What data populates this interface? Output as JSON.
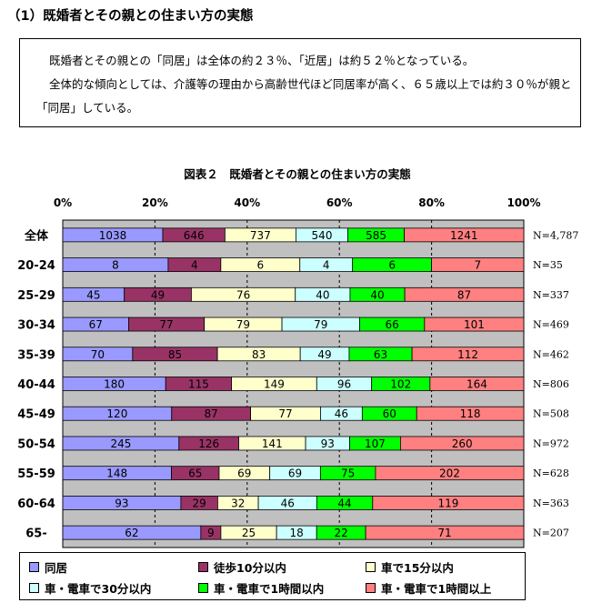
{
  "heading": "（1）既婚者とその親との住まい方の実態",
  "summary": [
    "既婚者とその親との「同居」は全体の約２３％、「近居」は約５２％となっている。",
    "全体的な傾向としては、介護等の理由から高齢世代ほど同居率が高く、６５歳以上では約３０％が親と「同居」している。"
  ],
  "chart_data": {
    "type": "bar",
    "orientation": "horizontal",
    "stacked": "100%",
    "title": "図表２　既婚者とその親との住まい方の実態",
    "x_ticks": [
      "0%",
      "20%",
      "40%",
      "60%",
      "80%",
      "100%"
    ],
    "xlim": [
      0,
      100
    ],
    "grid": "vertical dashed",
    "categories": [
      "全体",
      "20-24",
      "25-29",
      "30-34",
      "35-39",
      "40-44",
      "45-49",
      "50-54",
      "55-59",
      "60-64",
      "65-"
    ],
    "n_labels": [
      "N=4,787",
      "N=35",
      "N=337",
      "N=469",
      "N=462",
      "N=806",
      "N=508",
      "N=972",
      "N=628",
      "N=363",
      "N=207"
    ],
    "series": [
      {
        "name": "同居",
        "color": "#9999ff",
        "values": [
          1038,
          8,
          45,
          67,
          70,
          180,
          120,
          245,
          148,
          93,
          62
        ]
      },
      {
        "name": "徒歩10分以内",
        "color": "#993366",
        "values": [
          646,
          4,
          49,
          77,
          85,
          115,
          87,
          126,
          65,
          29,
          9
        ]
      },
      {
        "name": "車で15分以内",
        "color": "#ffffcc",
        "values": [
          737,
          6,
          76,
          79,
          83,
          149,
          77,
          141,
          69,
          32,
          25
        ]
      },
      {
        "name": "車・電車で30分以内",
        "color": "#ccffff",
        "values": [
          540,
          4,
          40,
          79,
          49,
          96,
          46,
          93,
          69,
          46,
          18
        ]
      },
      {
        "name": "車・電車で1時間以内",
        "color": "#00ff00",
        "values": [
          585,
          6,
          40,
          66,
          63,
          102,
          60,
          107,
          75,
          44,
          22
        ]
      },
      {
        "name": "車・電車で1時間以上",
        "color": "#ff8080",
        "values": [
          1241,
          7,
          87,
          101,
          112,
          164,
          118,
          260,
          202,
          119,
          71
        ]
      }
    ],
    "legend_position": "bottom"
  }
}
